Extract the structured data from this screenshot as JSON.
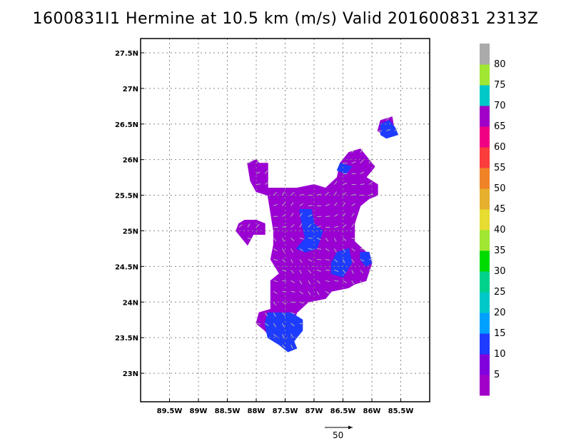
{
  "title": "1600831I1 Hermine at 10.5 km (m/s) Valid 201600831 2313Z",
  "chart_data": {
    "type": "heatmap",
    "title": "1600831I1 Hermine at 10.5 km (m/s) Valid 201600831 2313Z",
    "xlim": [
      -90.0,
      -85.0
    ],
    "ylim": [
      22.6,
      27.7
    ],
    "x_ticks": [
      -89.5,
      -89.0,
      -88.5,
      -88.0,
      -87.5,
      -87.0,
      -86.5,
      -86.0,
      -85.5
    ],
    "x_tick_labels": [
      "89.5W",
      "89W",
      "88.5W",
      "88W",
      "87.5W",
      "87W",
      "86.5W",
      "86W",
      "85.5W"
    ],
    "y_ticks": [
      23.0,
      23.5,
      24.0,
      24.5,
      25.0,
      25.5,
      26.0,
      26.5,
      27.0,
      27.5
    ],
    "y_tick_labels": [
      "23N",
      "23.5N",
      "24N",
      "24.5N",
      "25N",
      "25.5N",
      "26N",
      "26.5N",
      "27N",
      "27.5N"
    ],
    "grid": true,
    "colorbar": {
      "labels": [
        "5",
        "10",
        "15",
        "20",
        "25",
        "30",
        "35",
        "40",
        "45",
        "50",
        "55",
        "60",
        "65",
        "70",
        "75",
        "80"
      ],
      "colors": [
        "#a000c8",
        "#8200dc",
        "#1e3cff",
        "#00a0ff",
        "#00c8c8",
        "#00d28c",
        "#00dc00",
        "#a0e632",
        "#e6dc32",
        "#e6af2d",
        "#f08228",
        "#fa3c3c",
        "#f00082",
        "#a000c8",
        "#00c8c8",
        "#a0e632",
        "#aaaaaa"
      ]
    },
    "field_regions": [
      {
        "level": "5-10",
        "color": "#9a00d2",
        "polygon": [
          [
            -87.95,
            25.95
          ],
          [
            -87.8,
            25.95
          ],
          [
            -87.8,
            25.6
          ],
          [
            -87.5,
            25.6
          ],
          [
            -87.3,
            25.6
          ],
          [
            -87.0,
            25.65
          ],
          [
            -86.8,
            25.6
          ],
          [
            -86.6,
            25.75
          ],
          [
            -86.55,
            25.95
          ],
          [
            -86.4,
            26.1
          ],
          [
            -86.2,
            26.15
          ],
          [
            -86.1,
            26.05
          ],
          [
            -85.95,
            25.9
          ],
          [
            -86.1,
            25.75
          ],
          [
            -85.9,
            25.65
          ],
          [
            -85.9,
            25.5
          ],
          [
            -86.05,
            25.45
          ],
          [
            -86.2,
            25.35
          ],
          [
            -86.3,
            25.1
          ],
          [
            -86.3,
            24.85
          ],
          [
            -86.1,
            24.7
          ],
          [
            -86.0,
            24.55
          ],
          [
            -86.1,
            24.3
          ],
          [
            -86.3,
            24.25
          ],
          [
            -86.4,
            24.2
          ],
          [
            -86.7,
            24.15
          ],
          [
            -86.8,
            24.05
          ],
          [
            -87.1,
            24.0
          ],
          [
            -87.3,
            23.85
          ],
          [
            -87.4,
            23.6
          ],
          [
            -87.5,
            23.4
          ],
          [
            -87.7,
            23.45
          ],
          [
            -87.85,
            23.6
          ],
          [
            -88.0,
            23.7
          ],
          [
            -87.95,
            23.85
          ],
          [
            -87.75,
            23.9
          ],
          [
            -87.75,
            24.3
          ],
          [
            -87.6,
            24.4
          ],
          [
            -87.75,
            24.6
          ],
          [
            -87.7,
            24.8
          ],
          [
            -87.7,
            25.0
          ],
          [
            -87.75,
            25.25
          ],
          [
            -87.8,
            25.5
          ],
          [
            -88.0,
            25.55
          ],
          [
            -88.1,
            25.7
          ],
          [
            -88.15,
            25.95
          ],
          [
            -88.0,
            26.0
          ]
        ]
      },
      {
        "level": "5-10",
        "color": "#9a00d2",
        "polygon": [
          [
            -88.2,
            25.15
          ],
          [
            -88.0,
            25.15
          ],
          [
            -87.85,
            25.1
          ],
          [
            -87.85,
            24.95
          ],
          [
            -88.05,
            24.95
          ],
          [
            -88.15,
            24.8
          ],
          [
            -88.25,
            24.9
          ],
          [
            -88.35,
            25.0
          ],
          [
            -88.3,
            25.1
          ]
        ]
      },
      {
        "level": "5-10",
        "color": "#9a00d2",
        "polygon": [
          [
            -85.85,
            26.55
          ],
          [
            -85.65,
            26.6
          ],
          [
            -85.6,
            26.35
          ],
          [
            -85.75,
            26.35
          ],
          [
            -85.9,
            26.4
          ]
        ]
      },
      {
        "level": "10-15",
        "color": "#1e3cff",
        "polygon": [
          [
            -87.8,
            23.85
          ],
          [
            -87.4,
            23.85
          ],
          [
            -87.2,
            23.75
          ],
          [
            -87.2,
            23.6
          ],
          [
            -87.35,
            23.45
          ],
          [
            -87.3,
            23.35
          ],
          [
            -87.45,
            23.3
          ],
          [
            -87.6,
            23.4
          ],
          [
            -87.8,
            23.5
          ],
          [
            -87.85,
            23.7
          ]
        ]
      },
      {
        "level": "10-15",
        "color": "#1e3cff",
        "polygon": [
          [
            -87.25,
            25.3
          ],
          [
            -87.05,
            25.3
          ],
          [
            -87.0,
            25.1
          ],
          [
            -86.85,
            25.0
          ],
          [
            -86.95,
            24.75
          ],
          [
            -87.15,
            24.7
          ],
          [
            -87.3,
            24.75
          ],
          [
            -87.15,
            24.9
          ],
          [
            -87.2,
            25.05
          ]
        ]
      },
      {
        "level": "10-15",
        "color": "#1e3cff",
        "polygon": [
          [
            -86.6,
            24.7
          ],
          [
            -86.4,
            24.75
          ],
          [
            -86.35,
            24.55
          ],
          [
            -86.5,
            24.35
          ],
          [
            -86.7,
            24.4
          ],
          [
            -86.7,
            24.55
          ]
        ]
      },
      {
        "level": "10-15",
        "color": "#1e3cff",
        "polygon": [
          [
            -85.85,
            26.5
          ],
          [
            -85.7,
            26.55
          ],
          [
            -85.6,
            26.45
          ],
          [
            -85.55,
            26.35
          ],
          [
            -85.75,
            26.3
          ],
          [
            -85.85,
            26.35
          ]
        ]
      },
      {
        "level": "10-15",
        "color": "#1e3cff",
        "polygon": [
          [
            -86.6,
            25.85
          ],
          [
            -86.45,
            25.8
          ],
          [
            -86.35,
            25.9
          ],
          [
            -86.55,
            25.95
          ]
        ]
      },
      {
        "level": "10-15",
        "color": "#1e3cff",
        "polygon": [
          [
            -86.2,
            24.7
          ],
          [
            -86.05,
            24.7
          ],
          [
            -86.0,
            24.55
          ],
          [
            -86.1,
            24.5
          ],
          [
            -86.2,
            24.6
          ]
        ]
      }
    ]
  },
  "reference_vector": {
    "label": "50"
  }
}
